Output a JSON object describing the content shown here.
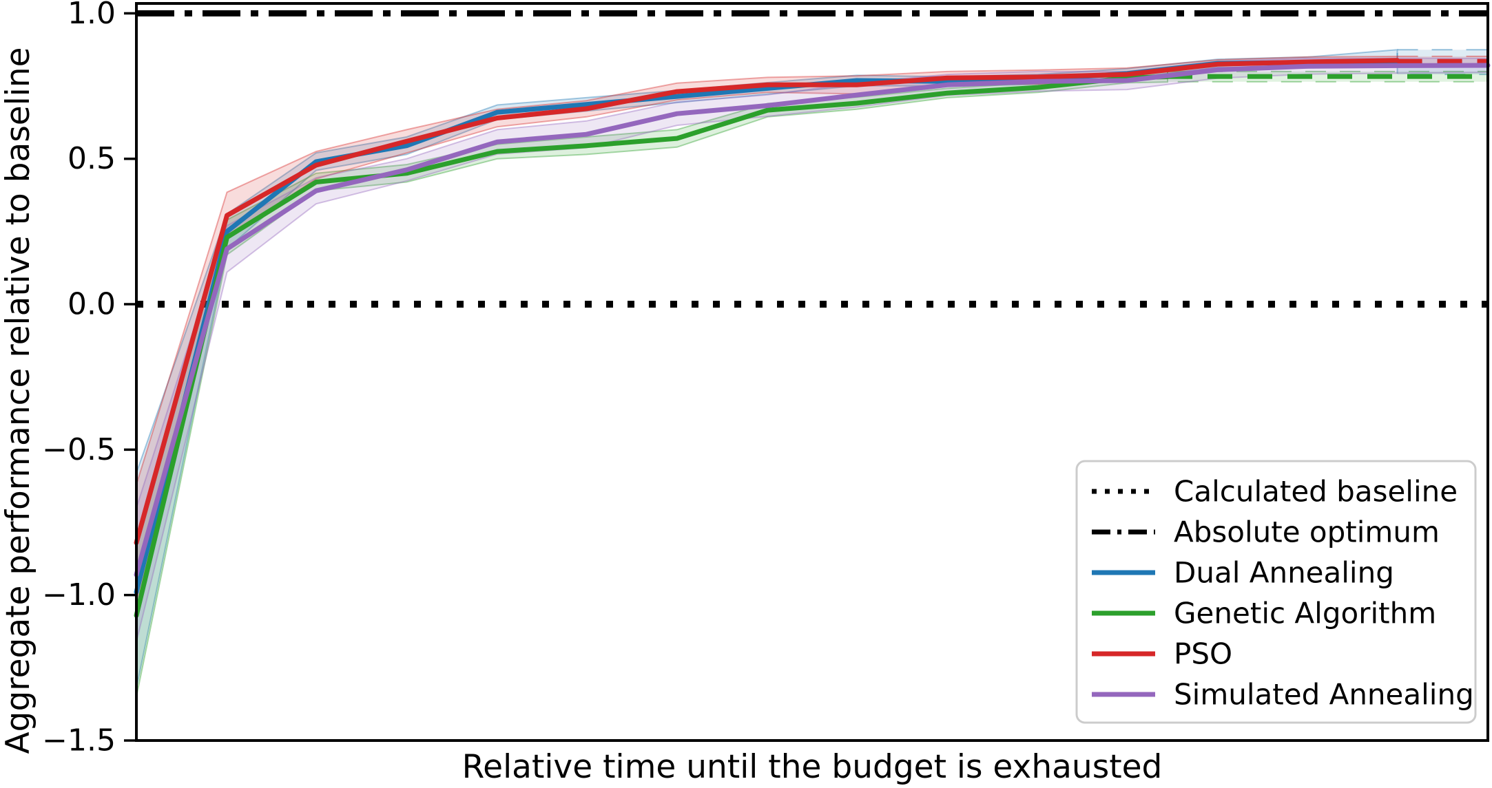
{
  "figure": {
    "background": "#ffffff",
    "xlabel": "Relative time until the budget is exhausted",
    "ylabel": "Aggregate performance relative to baseline"
  },
  "chart_data": {
    "type": "line",
    "title": "",
    "xlabel": "Relative time until the budget is exhausted",
    "ylabel": "Aggregate performance relative to baseline",
    "x_axis": {
      "range": [
        0,
        1
      ],
      "ticks": [],
      "tick_labels": []
    },
    "y_axis": {
      "range": [
        -1.5,
        1.034
      ],
      "ticks": [
        1.0,
        0.5,
        0.0,
        -0.5,
        -1.0,
        -1.5
      ],
      "tick_labels": [
        "1.0",
        "0.5",
        "0.0",
        "−0.5",
        "−1.0",
        "−1.5"
      ]
    },
    "grid": "off",
    "reference_lines": [
      {
        "name": "Calculated baseline",
        "y": 0.0,
        "style": "dotted",
        "color": "#000000"
      },
      {
        "name": "Absolute optimum",
        "y": 1.0,
        "style": "dashdot",
        "color": "#000000"
      }
    ],
    "series": [
      {
        "name": "Dual Annealing",
        "color": "#1f77b4",
        "x": [
          0,
          0.067,
          0.133,
          0.2,
          0.267,
          0.333,
          0.4,
          0.467,
          0.533,
          0.6,
          0.667,
          0.733,
          0.8,
          0.867,
          0.933
        ],
        "y": [
          -0.99,
          0.25,
          0.49,
          0.545,
          0.66,
          0.687,
          0.714,
          0.742,
          0.769,
          0.766,
          0.773,
          0.793,
          0.828,
          0.831,
          0.833
        ],
        "band_upper": [
          -0.58,
          0.31,
          0.52,
          0.575,
          0.685,
          0.71,
          0.735,
          0.762,
          0.787,
          0.782,
          0.79,
          0.81,
          0.842,
          0.85,
          0.875
        ],
        "band_lower": [
          -1.32,
          0.19,
          0.46,
          0.515,
          0.635,
          0.664,
          0.693,
          0.722,
          0.751,
          0.75,
          0.756,
          0.776,
          0.814,
          0.812,
          0.824
        ],
        "dashed_tail": {
          "x_start": 0.933,
          "x_end": 1.0,
          "y": 0.833,
          "band_upper": 0.875,
          "band_lower": 0.79
        }
      },
      {
        "name": "Genetic Algorithm",
        "color": "#2ca02c",
        "x": [
          0,
          0.067,
          0.133,
          0.2,
          0.267,
          0.333,
          0.4,
          0.467,
          0.533,
          0.6,
          0.667,
          0.733,
          0.763
        ],
        "y": [
          -1.07,
          0.23,
          0.42,
          0.45,
          0.525,
          0.545,
          0.57,
          0.667,
          0.691,
          0.726,
          0.745,
          0.778,
          0.782
        ],
        "band_upper": [
          -0.82,
          0.29,
          0.45,
          0.48,
          0.55,
          0.575,
          0.6,
          0.69,
          0.712,
          0.742,
          0.762,
          0.795,
          0.8
        ],
        "band_lower": [
          -1.35,
          0.17,
          0.39,
          0.42,
          0.5,
          0.515,
          0.54,
          0.644,
          0.67,
          0.71,
          0.728,
          0.761,
          0.764
        ],
        "dashed_tail": {
          "x_start": 0.763,
          "x_end": 1.0,
          "y": 0.783,
          "band_upper": 0.8,
          "band_lower": 0.765
        }
      },
      {
        "name": "PSO",
        "color": "#d62728",
        "x": [
          0,
          0.067,
          0.133,
          0.2,
          0.267,
          0.333,
          0.4,
          0.467,
          0.533,
          0.6,
          0.667,
          0.733,
          0.8,
          0.867,
          0.933
        ],
        "y": [
          -0.82,
          0.305,
          0.478,
          0.56,
          0.64,
          0.672,
          0.731,
          0.754,
          0.754,
          0.778,
          0.781,
          0.79,
          0.825,
          0.833,
          0.838
        ],
        "band_upper": [
          -0.62,
          0.385,
          0.525,
          0.6,
          0.67,
          0.7,
          0.76,
          0.78,
          0.785,
          0.8,
          0.805,
          0.812,
          0.84,
          0.85,
          0.852
        ],
        "band_lower": [
          -1.02,
          0.225,
          0.431,
          0.52,
          0.61,
          0.644,
          0.702,
          0.728,
          0.723,
          0.756,
          0.757,
          0.768,
          0.81,
          0.816,
          0.824
        ],
        "dashed_tail": {
          "x_start": 0.933,
          "x_end": 1.0,
          "y": 0.835,
          "band_upper": 0.852,
          "band_lower": 0.824
        }
      },
      {
        "name": "Simulated Annealing",
        "color": "#9467bd",
        "x": [
          0,
          0.067,
          0.133,
          0.2,
          0.267,
          0.333,
          0.4,
          0.467,
          0.533,
          0.6,
          0.667,
          0.733,
          0.8,
          0.867,
          0.933,
          1.0
        ],
        "y": [
          -0.93,
          0.19,
          0.39,
          0.462,
          0.558,
          0.584,
          0.655,
          0.683,
          0.719,
          0.754,
          0.766,
          0.769,
          0.806,
          0.818,
          0.82,
          0.821
        ],
        "band_upper": [
          -0.7,
          0.27,
          0.435,
          0.5,
          0.6,
          0.63,
          0.695,
          0.72,
          0.76,
          0.79,
          0.8,
          0.8,
          0.835,
          0.845,
          0.846,
          0.845
        ],
        "band_lower": [
          -1.16,
          0.11,
          0.345,
          0.424,
          0.516,
          0.538,
          0.615,
          0.646,
          0.678,
          0.718,
          0.732,
          0.738,
          0.777,
          0.791,
          0.794,
          0.797
        ],
        "dashed_tail": null
      }
    ],
    "legend": {
      "position": "lower right",
      "entries": [
        {
          "label": "Calculated baseline",
          "style": "dotted",
          "color": "#000000"
        },
        {
          "label": "Absolute optimum",
          "style": "dashdot",
          "color": "#000000"
        },
        {
          "label": "Dual Annealing",
          "style": "solid",
          "color": "#1f77b4"
        },
        {
          "label": "Genetic Algorithm",
          "style": "solid",
          "color": "#2ca02c"
        },
        {
          "label": "PSO",
          "style": "solid",
          "color": "#d62728"
        },
        {
          "label": "Simulated Annealing",
          "style": "solid",
          "color": "#9467bd"
        }
      ]
    }
  }
}
